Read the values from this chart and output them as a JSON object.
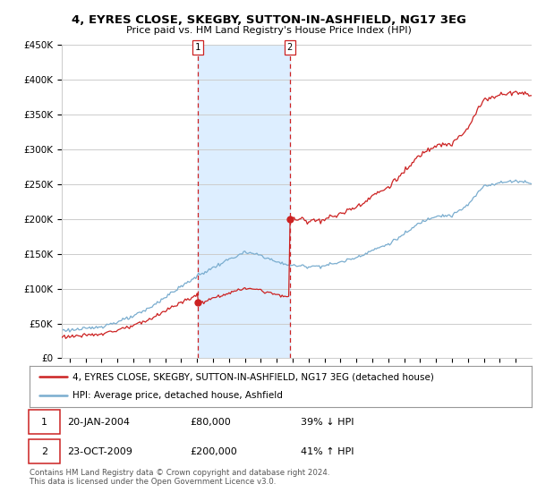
{
  "title": "4, EYRES CLOSE, SKEGBY, SUTTON-IN-ASHFIELD, NG17 3EG",
  "subtitle": "Price paid vs. HM Land Registry's House Price Index (HPI)",
  "ylim": [
    0,
    450000
  ],
  "yticks": [
    0,
    50000,
    100000,
    150000,
    200000,
    250000,
    300000,
    350000,
    400000,
    450000
  ],
  "ytick_labels": [
    "£0",
    "£50K",
    "£100K",
    "£150K",
    "£200K",
    "£250K",
    "£300K",
    "£350K",
    "£400K",
    "£450K"
  ],
  "sale1_date": 2004.06,
  "sale1_price": 80000,
  "sale2_date": 2009.81,
  "sale2_price": 200000,
  "hpi_line_color": "#7aadcf",
  "price_line_color": "#cc2222",
  "vline_color": "#cc2222",
  "vspan_color": "#ddeeff",
  "legend_label1": "4, EYRES CLOSE, SKEGBY, SUTTON-IN-ASHFIELD, NG17 3EG (detached house)",
  "legend_label2": "HPI: Average price, detached house, Ashfield",
  "note1_date": "20-JAN-2004",
  "note1_price": "£80,000",
  "note1_hpi": "39% ↓ HPI",
  "note2_date": "23-OCT-2009",
  "note2_price": "£200,000",
  "note2_hpi": "41% ↑ HPI",
  "footer": "Contains HM Land Registry data © Crown copyright and database right 2024.\nThis data is licensed under the Open Government Licence v3.0.",
  "bg_color": "#ffffff",
  "grid_color": "#cccccc",
  "xlim_start": 1995.5,
  "xlim_end": 2025.0
}
